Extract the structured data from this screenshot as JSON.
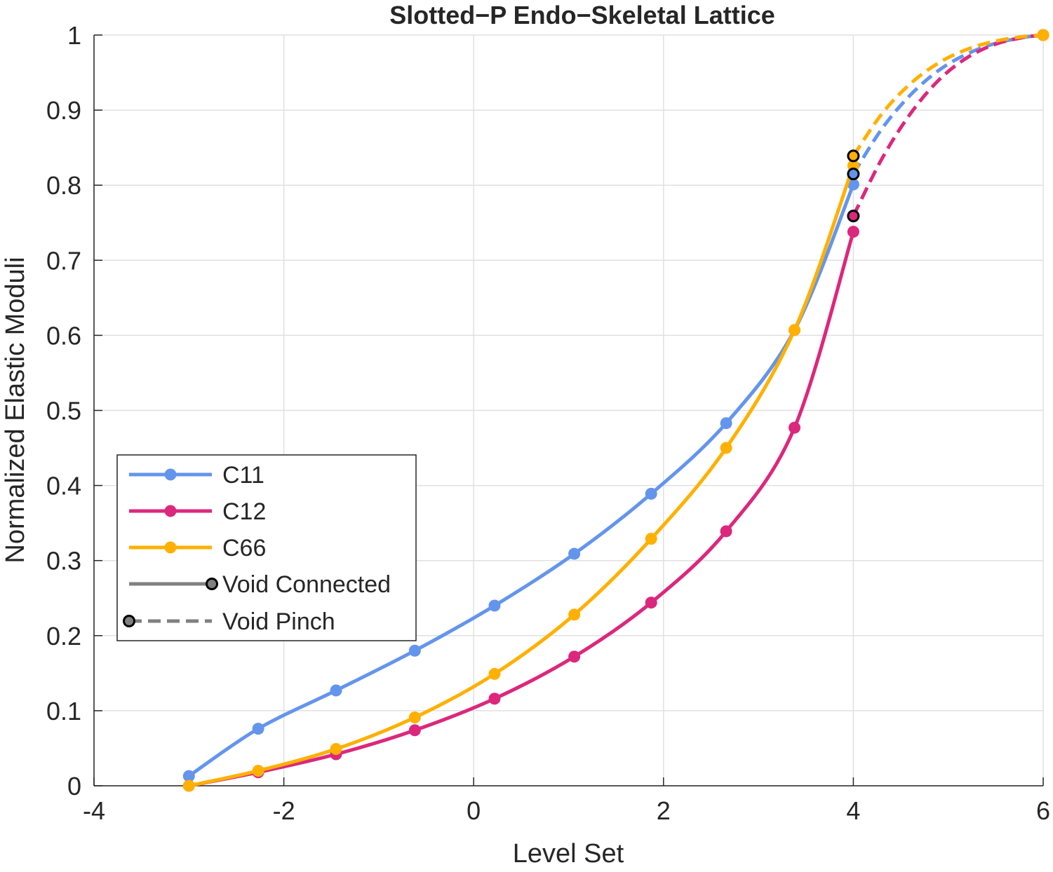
{
  "chart_data": {
    "type": "line",
    "title": "Slotted−P Endo−Skeletal Lattice",
    "xlabel": "Level Set",
    "ylabel": "Normalized Elastic Moduli",
    "xlim": [
      -4,
      6
    ],
    "ylim": [
      0,
      1
    ],
    "xticks": [
      -4,
      -2,
      0,
      2,
      4,
      6
    ],
    "xtick_labels": [
      "-4",
      "-2",
      "0",
      "2",
      "4",
      "6"
    ],
    "yticks": [
      0,
      0.1,
      0.2,
      0.3,
      0.4,
      0.5,
      0.6,
      0.7,
      0.8,
      0.9,
      1
    ],
    "ytick_labels": [
      "0",
      "0.1",
      "0.2",
      "0.3",
      "0.4",
      "0.5",
      "0.6",
      "0.7",
      "0.8",
      "0.9",
      "1"
    ],
    "grid": true,
    "legend_position": "bottom-left",
    "series": [
      {
        "name": "C11",
        "color": "#6495ED",
        "x": [
          -3.0,
          -2.27,
          -1.45,
          -0.62,
          0.22,
          1.06,
          1.87,
          2.66,
          3.38,
          4.0
        ],
        "values": [
          0.013,
          0.076,
          0.127,
          0.18,
          0.24,
          0.309,
          0.389,
          0.483,
          0.607,
          0.801
        ],
        "pinch_point": [
          4.0,
          0.815
        ],
        "pinch_x": [
          4.0,
          4.3,
          4.6,
          4.9,
          5.2,
          5.5,
          5.8,
          6.0
        ],
        "pinch_values": [
          0.815,
          0.875,
          0.92,
          0.953,
          0.975,
          0.989,
          0.997,
          1.0
        ]
      },
      {
        "name": "C12",
        "color": "#DB287D",
        "x": [
          -3.0,
          -2.27,
          -1.45,
          -0.62,
          0.22,
          1.06,
          1.87,
          2.66,
          3.38,
          4.0
        ],
        "values": [
          0.0,
          0.018,
          0.042,
          0.074,
          0.116,
          0.172,
          0.244,
          0.339,
          0.477,
          0.738
        ],
        "pinch_point": [
          4.0,
          0.759
        ],
        "pinch_x": [
          4.0,
          4.3,
          4.6,
          4.9,
          5.2,
          5.5,
          5.8,
          6.0
        ],
        "pinch_values": [
          0.759,
          0.835,
          0.895,
          0.94,
          0.97,
          0.988,
          0.997,
          1.0
        ]
      },
      {
        "name": "C66",
        "color": "#FFB000",
        "x": [
          -3.0,
          -2.27,
          -1.45,
          -0.62,
          0.22,
          1.06,
          1.87,
          2.66,
          3.38,
          4.0
        ],
        "values": [
          0.0,
          0.02,
          0.049,
          0.091,
          0.149,
          0.228,
          0.329,
          0.45,
          0.607,
          0.826
        ],
        "pinch_point": [
          4.0,
          0.839
        ],
        "pinch_x": [
          4.0,
          4.3,
          4.6,
          4.9,
          5.2,
          5.5,
          5.8,
          6.0
        ],
        "pinch_values": [
          0.839,
          0.895,
          0.935,
          0.963,
          0.981,
          0.992,
          0.998,
          1.0
        ]
      }
    ],
    "legend": [
      {
        "label": "C11",
        "style": "solid-marker",
        "color": "#6495ED"
      },
      {
        "label": "C12",
        "style": "solid-marker",
        "color": "#DB287D"
      },
      {
        "label": "C66",
        "style": "solid-marker",
        "color": "#FFB000"
      },
      {
        "label": "Void Connected",
        "style": "solid-gray-end-marker",
        "color": "#808080"
      },
      {
        "label": "Void Pinch",
        "style": "dashed-gray-start-marker",
        "color": "#808080"
      }
    ]
  }
}
